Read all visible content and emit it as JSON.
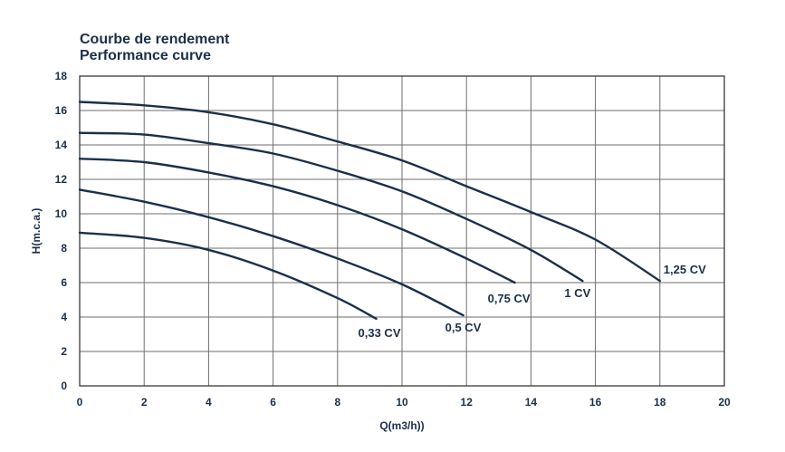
{
  "chart_data": {
    "type": "line",
    "title": "Courbe de rendement",
    "subtitle": "Performance curve",
    "xlabel": "Q(m3/h))",
    "ylabel": "H(m.c.a.)",
    "xlim": [
      0,
      20
    ],
    "ylim": [
      0,
      18
    ],
    "xticks": [
      "0",
      "2",
      "4",
      "6",
      "8",
      "10",
      "12",
      "14",
      "16",
      "18",
      "20"
    ],
    "yticks": [
      "0",
      "2",
      "4",
      "6",
      "8",
      "10",
      "12",
      "14",
      "16",
      "18"
    ],
    "grid": true,
    "colors": {
      "curve": "#1b2f4a",
      "grid": "#6e6e6e",
      "text": "#1b2f4a"
    },
    "series": [
      {
        "name": "0,33 CV",
        "x": [
          0,
          2,
          4,
          6,
          8,
          9.2
        ],
        "y": [
          8.9,
          8.6,
          7.9,
          6.7,
          5.1,
          3.9
        ]
      },
      {
        "name": "0,5 CV",
        "x": [
          0,
          2,
          4,
          6,
          8,
          10,
          11.9
        ],
        "y": [
          11.4,
          10.7,
          9.8,
          8.7,
          7.4,
          5.9,
          4.1
        ]
      },
      {
        "name": "0,75 CV",
        "x": [
          0,
          2,
          4,
          6,
          8,
          10,
          12,
          13.5
        ],
        "y": [
          13.2,
          13.0,
          12.4,
          11.6,
          10.5,
          9.1,
          7.4,
          6.0
        ]
      },
      {
        "name": "1 CV",
        "x": [
          0,
          2,
          4,
          6,
          8,
          10,
          12,
          14,
          15.6
        ],
        "y": [
          14.7,
          14.6,
          14.1,
          13.5,
          12.5,
          11.3,
          9.7,
          7.9,
          6.1
        ]
      },
      {
        "name": "1,25 CV",
        "x": [
          0,
          2,
          4,
          6,
          8,
          10,
          12,
          14,
          16,
          18
        ],
        "y": [
          16.5,
          16.3,
          15.9,
          15.2,
          14.2,
          13.1,
          11.6,
          10.1,
          8.5,
          6.1
        ]
      }
    ]
  }
}
